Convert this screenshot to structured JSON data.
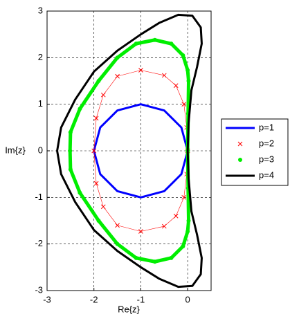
{
  "chart_data": {
    "type": "line",
    "xlabel": "Re{z}",
    "ylabel": "Im{z}",
    "xlim": [
      -3,
      0.5
    ],
    "ylim": [
      -3,
      3
    ],
    "xticks": [
      -3,
      -2,
      -1,
      0
    ],
    "yticks": [
      -3,
      -2,
      -1,
      0,
      1,
      2,
      3
    ],
    "grid": true,
    "legend": "outside-right",
    "series": [
      {
        "name": "p=1",
        "color": "#0000ff",
        "x": [
          0,
          -0.134,
          -0.5,
          -1,
          -1.5,
          -1.866,
          -2,
          -1.866,
          -1.5,
          -1,
          -0.5,
          -0.134,
          0
        ],
        "y": [
          0,
          0.5,
          0.866,
          1,
          0.866,
          0.5,
          0,
          -0.5,
          -0.866,
          -1,
          -0.866,
          -0.5,
          0
        ]
      },
      {
        "name": "p=2",
        "color": "#ff0000",
        "marker": "x",
        "x": [
          0,
          -0.02,
          -0.08,
          -0.25,
          -0.5,
          -1,
          -1.5,
          -1.8,
          -1.95,
          -2,
          -1.95,
          -1.8,
          -1.5,
          -1,
          -0.5,
          -0.25,
          -0.08,
          -0.02,
          0
        ],
        "y": [
          0,
          0.5,
          1.0,
          1.4,
          1.62,
          1.73,
          1.6,
          1.2,
          0.7,
          0,
          -0.7,
          -1.2,
          -1.6,
          -1.73,
          -1.62,
          -1.4,
          -1.0,
          -0.5,
          0
        ]
      },
      {
        "name": "p=3",
        "color": "#00ee00",
        "marker": "o",
        "x": [
          0,
          0.01,
          0.02,
          0,
          -0.1,
          -0.35,
          -0.7,
          -1.1,
          -1.5,
          -1.9,
          -2.3,
          -2.5,
          -2.51,
          -2.5,
          -2.3,
          -1.9,
          -1.5,
          -1.1,
          -0.7,
          -0.35,
          -0.1,
          0,
          0.02,
          0.01,
          0
        ],
        "y": [
          0,
          0.8,
          1.5,
          1.73,
          2.05,
          2.3,
          2.38,
          2.3,
          2.0,
          1.5,
          0.9,
          0.4,
          0,
          -0.4,
          -0.9,
          -1.5,
          -2.0,
          -2.3,
          -2.38,
          -2.3,
          -2.05,
          -1.73,
          -1.5,
          -0.8,
          0
        ]
      },
      {
        "name": "p=4",
        "color": "#000000",
        "x": [
          0,
          0.02,
          0.08,
          0.2,
          0.3,
          0.28,
          0.1,
          -0.2,
          -0.6,
          -1.0,
          -1.5,
          -2.0,
          -2.4,
          -2.7,
          -2.785,
          -2.7,
          -2.4,
          -2.0,
          -1.5,
          -1.0,
          -0.6,
          -0.2,
          0.1,
          0.28,
          0.3,
          0.2,
          0.08,
          0.02,
          0
        ],
        "y": [
          0,
          0.6,
          1.3,
          1.8,
          2.3,
          2.65,
          2.9,
          2.92,
          2.75,
          2.5,
          2.15,
          1.7,
          1.1,
          0.5,
          0,
          -0.5,
          -1.1,
          -1.7,
          -2.15,
          -2.5,
          -2.75,
          -2.92,
          -2.9,
          -2.65,
          -2.3,
          -1.8,
          -1.3,
          -0.6,
          0
        ]
      }
    ]
  }
}
